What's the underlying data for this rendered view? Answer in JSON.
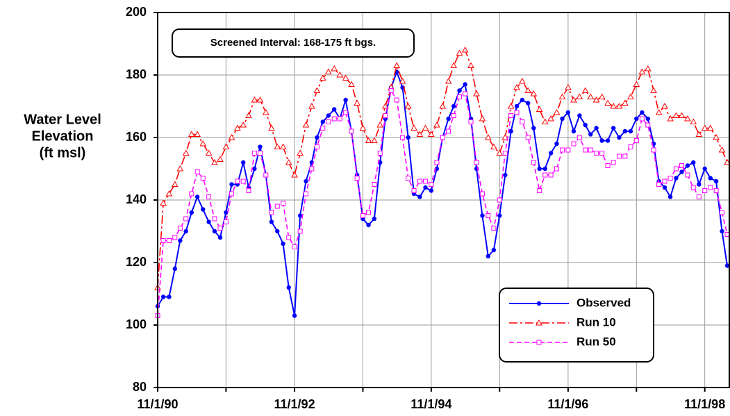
{
  "chart_data": {
    "type": "line",
    "ylabel": [
      "Water Level",
      "Elevation",
      "(ft msl)"
    ],
    "annotation": "Screened Interval: 168-175 ft bgs.",
    "x": [
      "1990-11-01",
      "1990-12-01",
      "1991-01-01",
      "1991-02-01",
      "1991-03-01",
      "1991-04-01",
      "1991-05-01",
      "1991-06-01",
      "1991-07-01",
      "1991-08-01",
      "1991-09-01",
      "1991-10-01",
      "1991-11-01",
      "1991-12-01",
      "1992-01-01",
      "1992-02-01",
      "1992-03-01",
      "1992-04-01",
      "1992-05-01",
      "1992-06-01",
      "1992-07-01",
      "1992-08-01",
      "1992-09-01",
      "1992-10-01",
      "1992-11-01",
      "1992-12-01",
      "1993-01-01",
      "1993-02-01",
      "1993-03-01",
      "1993-04-01",
      "1993-05-01",
      "1993-06-01",
      "1993-07-01",
      "1993-08-01",
      "1993-09-01",
      "1993-10-01",
      "1993-11-01",
      "1993-12-01",
      "1994-01-01",
      "1994-02-01",
      "1994-03-01",
      "1994-04-01",
      "1994-05-01",
      "1994-06-01",
      "1994-07-01",
      "1994-08-01",
      "1994-09-01",
      "1994-10-01",
      "1994-11-01",
      "1994-12-01",
      "1995-01-01",
      "1995-02-01",
      "1995-03-01",
      "1995-04-01",
      "1995-05-01",
      "1995-06-01",
      "1995-07-01",
      "1995-08-01",
      "1995-09-01",
      "1995-10-01",
      "1995-11-01",
      "1995-12-01",
      "1996-01-01",
      "1996-02-01",
      "1996-03-01",
      "1996-04-01",
      "1996-05-01",
      "1996-06-01",
      "1996-07-01",
      "1996-08-01",
      "1996-09-01",
      "1996-10-01",
      "1996-11-01",
      "1996-12-01",
      "1997-01-01",
      "1997-02-01",
      "1997-03-01",
      "1997-04-01",
      "1997-05-01",
      "1997-06-01",
      "1997-07-01",
      "1997-08-01",
      "1997-09-01",
      "1997-10-01",
      "1997-11-01",
      "1997-12-01",
      "1998-01-01",
      "1998-02-01",
      "1998-03-01",
      "1998-04-01",
      "1998-05-01",
      "1998-06-01",
      "1998-07-01",
      "1998-08-01",
      "1998-09-01",
      "1998-10-01",
      "1998-11-01",
      "1998-12-01",
      "1999-01-01",
      "1999-02-01",
      "1999-03-01"
    ],
    "series": [
      {
        "name": "Observed",
        "color": "#0000ff",
        "marker": "circle",
        "dash": "solid",
        "values": [
          106,
          109,
          109,
          118,
          127,
          130,
          136,
          141,
          137,
          133,
          130,
          128,
          136,
          145,
          145,
          152,
          144,
          150,
          157,
          148,
          133,
          130,
          126,
          112,
          103,
          135,
          146,
          152,
          160,
          165,
          167,
          169,
          166,
          172,
          162,
          148,
          134,
          132,
          134,
          152,
          166,
          176,
          181,
          176,
          160,
          142,
          141,
          144,
          143,
          150,
          160,
          166,
          170,
          175,
          177,
          166,
          150,
          135,
          122,
          124,
          135,
          148,
          162,
          170,
          172,
          171,
          163,
          150,
          150,
          155,
          158,
          166,
          168,
          162,
          167,
          164,
          161,
          163,
          159,
          159,
          163,
          160,
          162,
          162,
          166,
          168,
          166,
          158,
          146,
          144,
          141,
          147,
          149,
          151,
          152,
          145,
          150,
          147,
          146,
          130,
          119
        ]
      },
      {
        "name": "Run 10",
        "color": "#ff0000",
        "marker": "triangle",
        "dash": "dashdot",
        "values": [
          112,
          139,
          142,
          145,
          150,
          155,
          161,
          161,
          158,
          155,
          152,
          153,
          157,
          160,
          163,
          164,
          167,
          172,
          172,
          168,
          163,
          157,
          157,
          152,
          148,
          155,
          164,
          170,
          175,
          179,
          181,
          182,
          180,
          179,
          177,
          171,
          163,
          159,
          159,
          164,
          170,
          176,
          183,
          178,
          170,
          163,
          161,
          163,
          161,
          164,
          170,
          178,
          183,
          187,
          188,
          183,
          174,
          166,
          160,
          157,
          155,
          160,
          170,
          176,
          178,
          175,
          174,
          169,
          165,
          166,
          168,
          173,
          176,
          172,
          173,
          175,
          173,
          172,
          173,
          171,
          170,
          170,
          171,
          173,
          177,
          181,
          182,
          175,
          168,
          170,
          166,
          167,
          167,
          166,
          165,
          161,
          163,
          163,
          160,
          156,
          152
        ]
      },
      {
        "name": "Run 50",
        "color": "#ff00ff",
        "marker": "square",
        "dash": "dashed",
        "values": [
          103,
          127,
          127,
          128,
          131,
          134,
          142,
          149,
          147,
          141,
          134,
          131,
          133,
          142,
          146,
          146,
          143,
          155,
          155,
          148,
          136,
          138,
          139,
          128,
          125,
          130,
          142,
          150,
          157,
          163,
          165,
          166,
          166,
          168,
          162,
          147,
          135,
          136,
          145,
          155,
          167,
          175,
          172,
          160,
          147,
          143,
          146,
          146,
          145,
          152,
          160,
          162,
          167,
          173,
          174,
          165,
          152,
          142,
          135,
          131,
          140,
          155,
          167,
          168,
          165,
          160,
          152,
          143,
          148,
          148,
          150,
          156,
          156,
          158,
          160,
          156,
          156,
          155,
          155,
          151,
          152,
          154,
          154,
          157,
          159,
          166,
          164,
          156,
          145,
          146,
          147,
          150,
          151,
          148,
          144,
          141,
          143,
          144,
          143,
          136,
          129
        ]
      }
    ],
    "xlim": [
      "1990-11-01",
      "1999-03-12"
    ],
    "xticks": [
      {
        "value": "1990-11-01",
        "label": "11/1/90"
      },
      {
        "value": "1992-11-01",
        "label": "11/1/92"
      },
      {
        "value": "1994-11-01",
        "label": "11/1/94"
      },
      {
        "value": "1996-11-01",
        "label": "11/1/96"
      },
      {
        "value": "1998-11-01",
        "label": "11/1/98"
      }
    ],
    "xminor": [
      "1991-11-01",
      "1993-11-01",
      "1995-11-01",
      "1997-11-01"
    ],
    "ylim": [
      80,
      200
    ],
    "yticks": [
      80,
      100,
      120,
      140,
      160,
      180,
      200
    ],
    "grid": true,
    "legend": "lower right"
  }
}
